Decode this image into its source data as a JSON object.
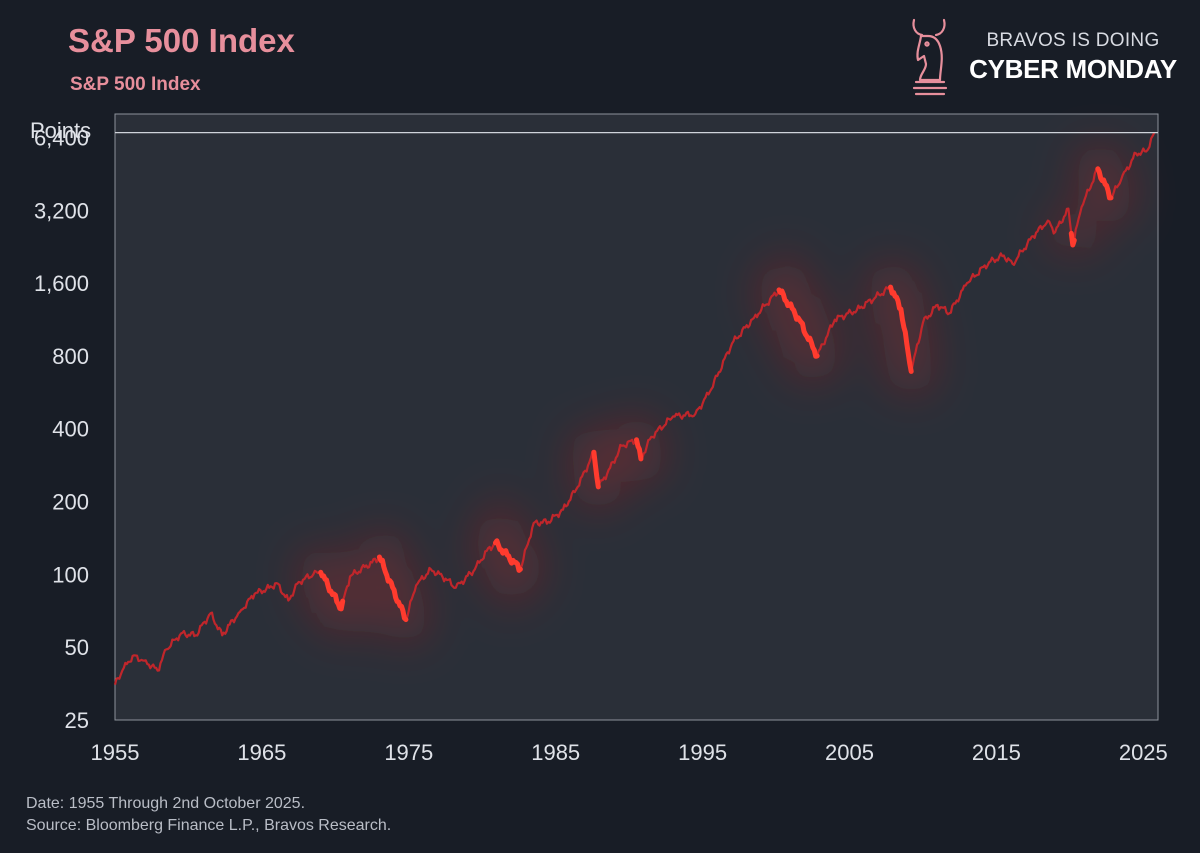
{
  "header": {
    "title": "S&P 500 Index",
    "subtitle": "S&P 500 Index"
  },
  "brand": {
    "line1": "BRAVOS IS DOING",
    "line2": "CYBER MONDAY",
    "logo_icon": "chess-knight-bull-icon"
  },
  "footer": {
    "date_note": "Date: 1955 Through 2nd October 2025.",
    "source_note": "Source: Bloomberg Finance L.P., Bravos Research."
  },
  "colors": {
    "background": "#181d26",
    "plot_background": "#2a2f38",
    "title": "#e78f9c",
    "line": "#c0262b",
    "highlight": "#ff3b2e",
    "axis_text": "#dfe2e8",
    "reference_line": "#cfd3da"
  },
  "chart_data": {
    "type": "line",
    "title": "S&P 500 Index",
    "subtitle": "S&P 500 Index",
    "ylabel": "Points",
    "y_scale": "log2",
    "ylim": [
      25,
      8000
    ],
    "xlim": [
      1955,
      2026
    ],
    "x_ticks": [
      1955,
      1965,
      1975,
      1985,
      1995,
      2005,
      2015,
      2025
    ],
    "x_tick_labels": [
      "1955",
      "1965",
      "1975",
      "1985",
      "1995",
      "2005",
      "2015",
      "2025"
    ],
    "y_ticks": [
      25,
      50,
      100,
      200,
      400,
      800,
      1600,
      3200,
      6400
    ],
    "y_tick_labels": [
      "25",
      "50",
      "100",
      "200",
      "400",
      "800",
      "1,600",
      "3,200",
      "6,400"
    ],
    "reference_line": 6700,
    "grid": false,
    "legend": "none",
    "series": [
      {
        "x": [
          1955.0,
          1955.5,
          1956.2,
          1957.0,
          1957.9,
          1958.5,
          1959.5,
          1960.5,
          1961.5,
          1962.3,
          1962.8,
          1963.5,
          1964.5,
          1965.5,
          1966.0,
          1966.8,
          1967.5,
          1968.5,
          1969.0,
          1970.4,
          1971.0,
          1972.5,
          1973.0,
          1974.8,
          1975.5,
          1976.5,
          1977.5,
          1978.2,
          1979.5,
          1980.3,
          1980.9,
          1982.6,
          1983.5,
          1984.5,
          1985.5,
          1986.5,
          1987.6,
          1987.9,
          1988.5,
          1989.5,
          1990.5,
          1990.8,
          1991.5,
          1993.0,
          1994.5,
          1995.5,
          1997.0,
          1998.5,
          2000.2,
          2001.5,
          2002.8,
          2004.0,
          2005.5,
          2007.8,
          2008.5,
          2009.2,
          2010.0,
          2011.0,
          2011.8,
          2013.0,
          2014.5,
          2015.5,
          2016.1,
          2017.5,
          2018.5,
          2019.0,
          2019.9,
          2020.2,
          2020.8,
          2021.9,
          2022.8,
          2023.5,
          2024.5,
          2025.2,
          2025.75
        ],
        "values": [
          35,
          40,
          46,
          44,
          40,
          49,
          57,
          56,
          69,
          56,
          62,
          70,
          83,
          88,
          92,
          78,
          93,
          100,
          102,
          72,
          98,
          112,
          118,
          65,
          90,
          105,
          96,
          88,
          105,
          125,
          135,
          105,
          163,
          165,
          185,
          230,
          320,
          230,
          260,
          340,
          360,
          300,
          370,
          450,
          460,
          570,
          900,
          1150,
          1500,
          1150,
          800,
          1130,
          1240,
          1540,
          1250,
          690,
          1100,
          1300,
          1200,
          1600,
          1950,
          2080,
          1920,
          2500,
          2900,
          2600,
          3250,
          2300,
          3300,
          4750,
          3600,
          4300,
          5500,
          5600,
          6700
        ]
      }
    ],
    "highlighted_ranges": [
      [
        1969.0,
        1970.5
      ],
      [
        1973.0,
        1974.8
      ],
      [
        1980.9,
        1982.6
      ],
      [
        1987.6,
        1987.9
      ],
      [
        1990.5,
        1990.8
      ],
      [
        2000.2,
        2002.8
      ],
      [
        2007.8,
        2009.2
      ],
      [
        2020.1,
        2020.3
      ],
      [
        2021.9,
        2022.8
      ]
    ]
  }
}
